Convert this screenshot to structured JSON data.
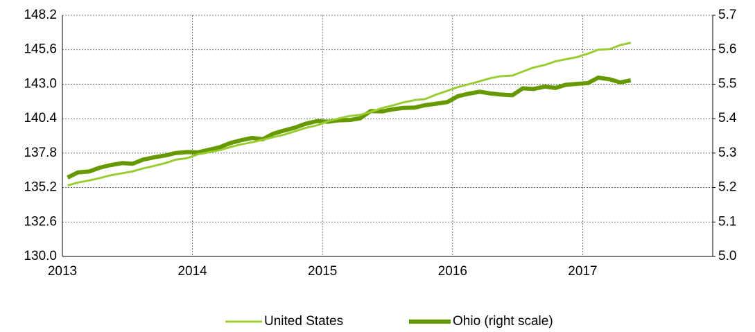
{
  "chart_data": {
    "type": "line",
    "x": [
      2013.04,
      2013.12,
      2013.21,
      2013.29,
      2013.37,
      2013.46,
      2013.54,
      2013.62,
      2013.71,
      2013.79,
      2013.87,
      2013.96,
      2014.04,
      2014.12,
      2014.21,
      2014.29,
      2014.37,
      2014.46,
      2014.54,
      2014.62,
      2014.71,
      2014.79,
      2014.87,
      2014.96,
      2015.04,
      2015.12,
      2015.21,
      2015.29,
      2015.37,
      2015.46,
      2015.54,
      2015.62,
      2015.71,
      2015.79,
      2015.87,
      2015.96,
      2016.04,
      2016.12,
      2016.21,
      2016.29,
      2016.37,
      2016.46,
      2016.54,
      2016.62,
      2016.71,
      2016.79,
      2016.87,
      2016.96,
      2017.04,
      2017.12,
      2017.21,
      2017.29,
      2017.37
    ],
    "series": [
      {
        "name": "United States",
        "color": "#99cc33",
        "values": [
          135.36,
          135.58,
          135.74,
          135.92,
          136.12,
          136.28,
          136.42,
          136.64,
          136.84,
          137.04,
          137.3,
          137.42,
          137.7,
          137.85,
          138.02,
          138.25,
          138.45,
          138.62,
          138.8,
          139.0,
          139.2,
          139.45,
          139.7,
          139.9,
          140.2,
          140.4,
          140.6,
          140.68,
          140.9,
          141.2,
          141.4,
          141.62,
          141.8,
          141.88,
          142.2,
          142.5,
          142.78,
          142.98,
          143.22,
          143.45,
          143.6,
          143.65,
          143.95,
          144.25,
          144.45,
          144.72,
          144.88,
          145.05,
          145.3,
          145.6,
          145.65,
          145.95,
          146.12
        ]
      },
      {
        "name": "Ohio (right scale)",
        "color": "#669900",
        "axis": "y2",
        "values": [
          5.229,
          5.244,
          5.247,
          5.258,
          5.265,
          5.271,
          5.269,
          5.281,
          5.288,
          5.293,
          5.3,
          5.303,
          5.302,
          5.309,
          5.317,
          5.329,
          5.337,
          5.344,
          5.34,
          5.356,
          5.366,
          5.374,
          5.385,
          5.393,
          5.391,
          5.395,
          5.396,
          5.401,
          5.422,
          5.421,
          5.427,
          5.431,
          5.432,
          5.439,
          5.443,
          5.448,
          5.465,
          5.472,
          5.478,
          5.473,
          5.47,
          5.468,
          5.488,
          5.486,
          5.493,
          5.489,
          5.498,
          5.501,
          5.503,
          5.519,
          5.514,
          5.505,
          5.511
        ]
      }
    ],
    "xlim": [
      2013,
      2018
    ],
    "xticks": [
      2013,
      2014,
      2015,
      2016,
      2017
    ],
    "ylim": [
      130,
      148.2
    ],
    "yticks": [
      {
        "value": 130,
        "label": "130.0"
      },
      132.6,
      135.2,
      137.8,
      140.4,
      {
        "value": 143,
        "label": "143.0"
      },
      145.6,
      148.2
    ],
    "y2lim": [
      5.0,
      5.7
    ],
    "y2ticks": [
      {
        "value": 5,
        "label": "5.0"
      },
      5.1,
      5.2,
      5.3,
      5.4,
      5.5,
      5.6,
      5.7
    ],
    "grid": true,
    "legend": "bottom"
  }
}
